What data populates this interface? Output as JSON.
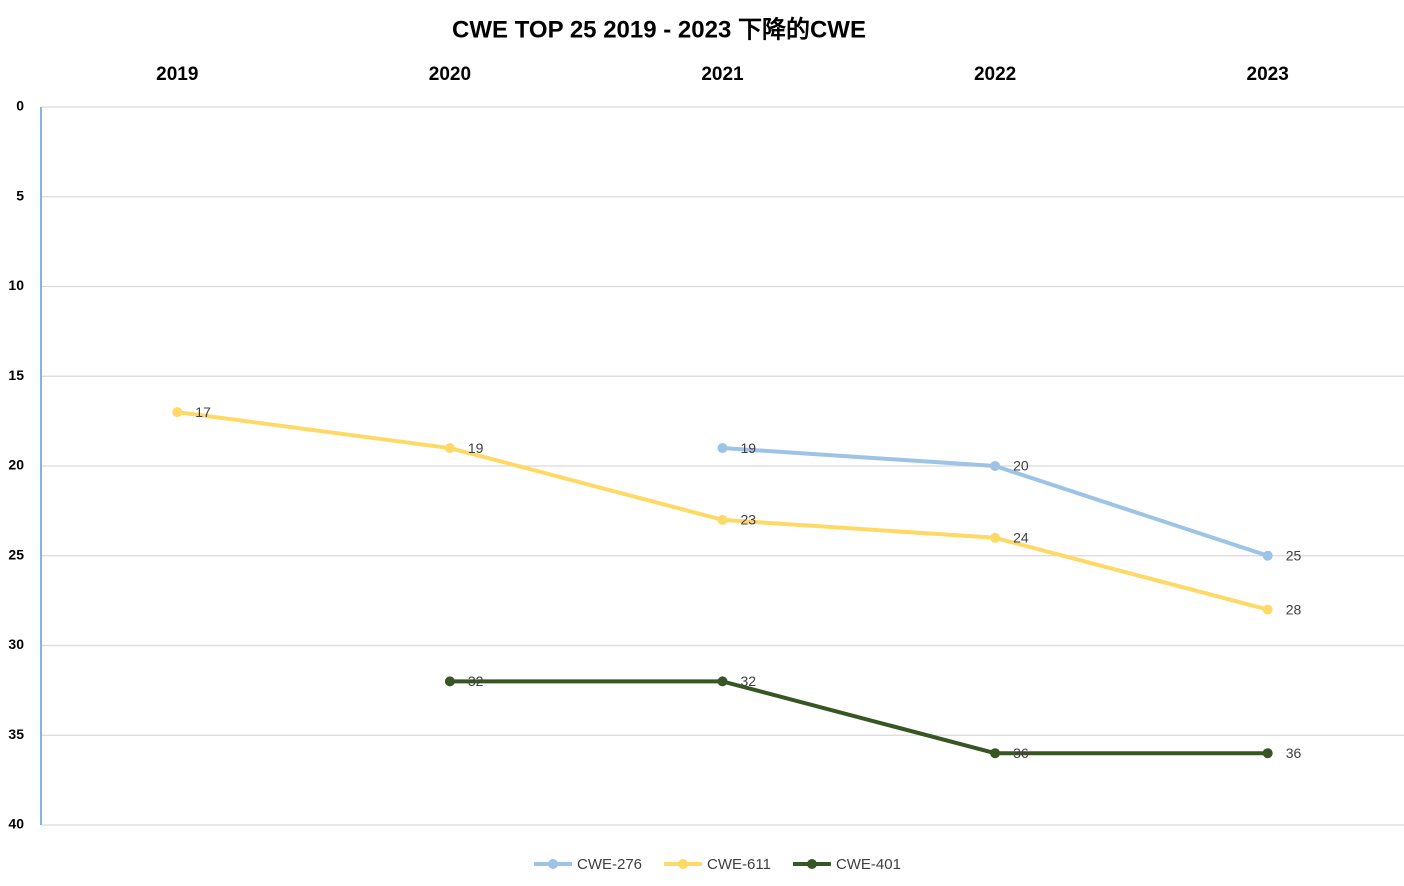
{
  "chart_data": {
    "type": "line",
    "title": "CWE TOP 25 2019 - 2023 下降的CWE",
    "categories": [
      "2019",
      "2020",
      "2021",
      "2022",
      "2023"
    ],
    "series": [
      {
        "name": "CWE-276",
        "color": "#9dc3e6",
        "values": [
          null,
          null,
          19,
          20,
          25
        ]
      },
      {
        "name": "CWE-611",
        "color": "#ffd966",
        "values": [
          17,
          19,
          23,
          24,
          28
        ]
      },
      {
        "name": "CWE-401",
        "color": "#375623",
        "values": [
          null,
          32,
          32,
          36,
          36
        ]
      }
    ],
    "ylim": [
      0,
      40
    ],
    "yticks": [
      0,
      5,
      10,
      15,
      20,
      25,
      30,
      35,
      40
    ],
    "y_reversed": true,
    "grid": true,
    "x_axis_position": "top",
    "legend": "bottom"
  }
}
